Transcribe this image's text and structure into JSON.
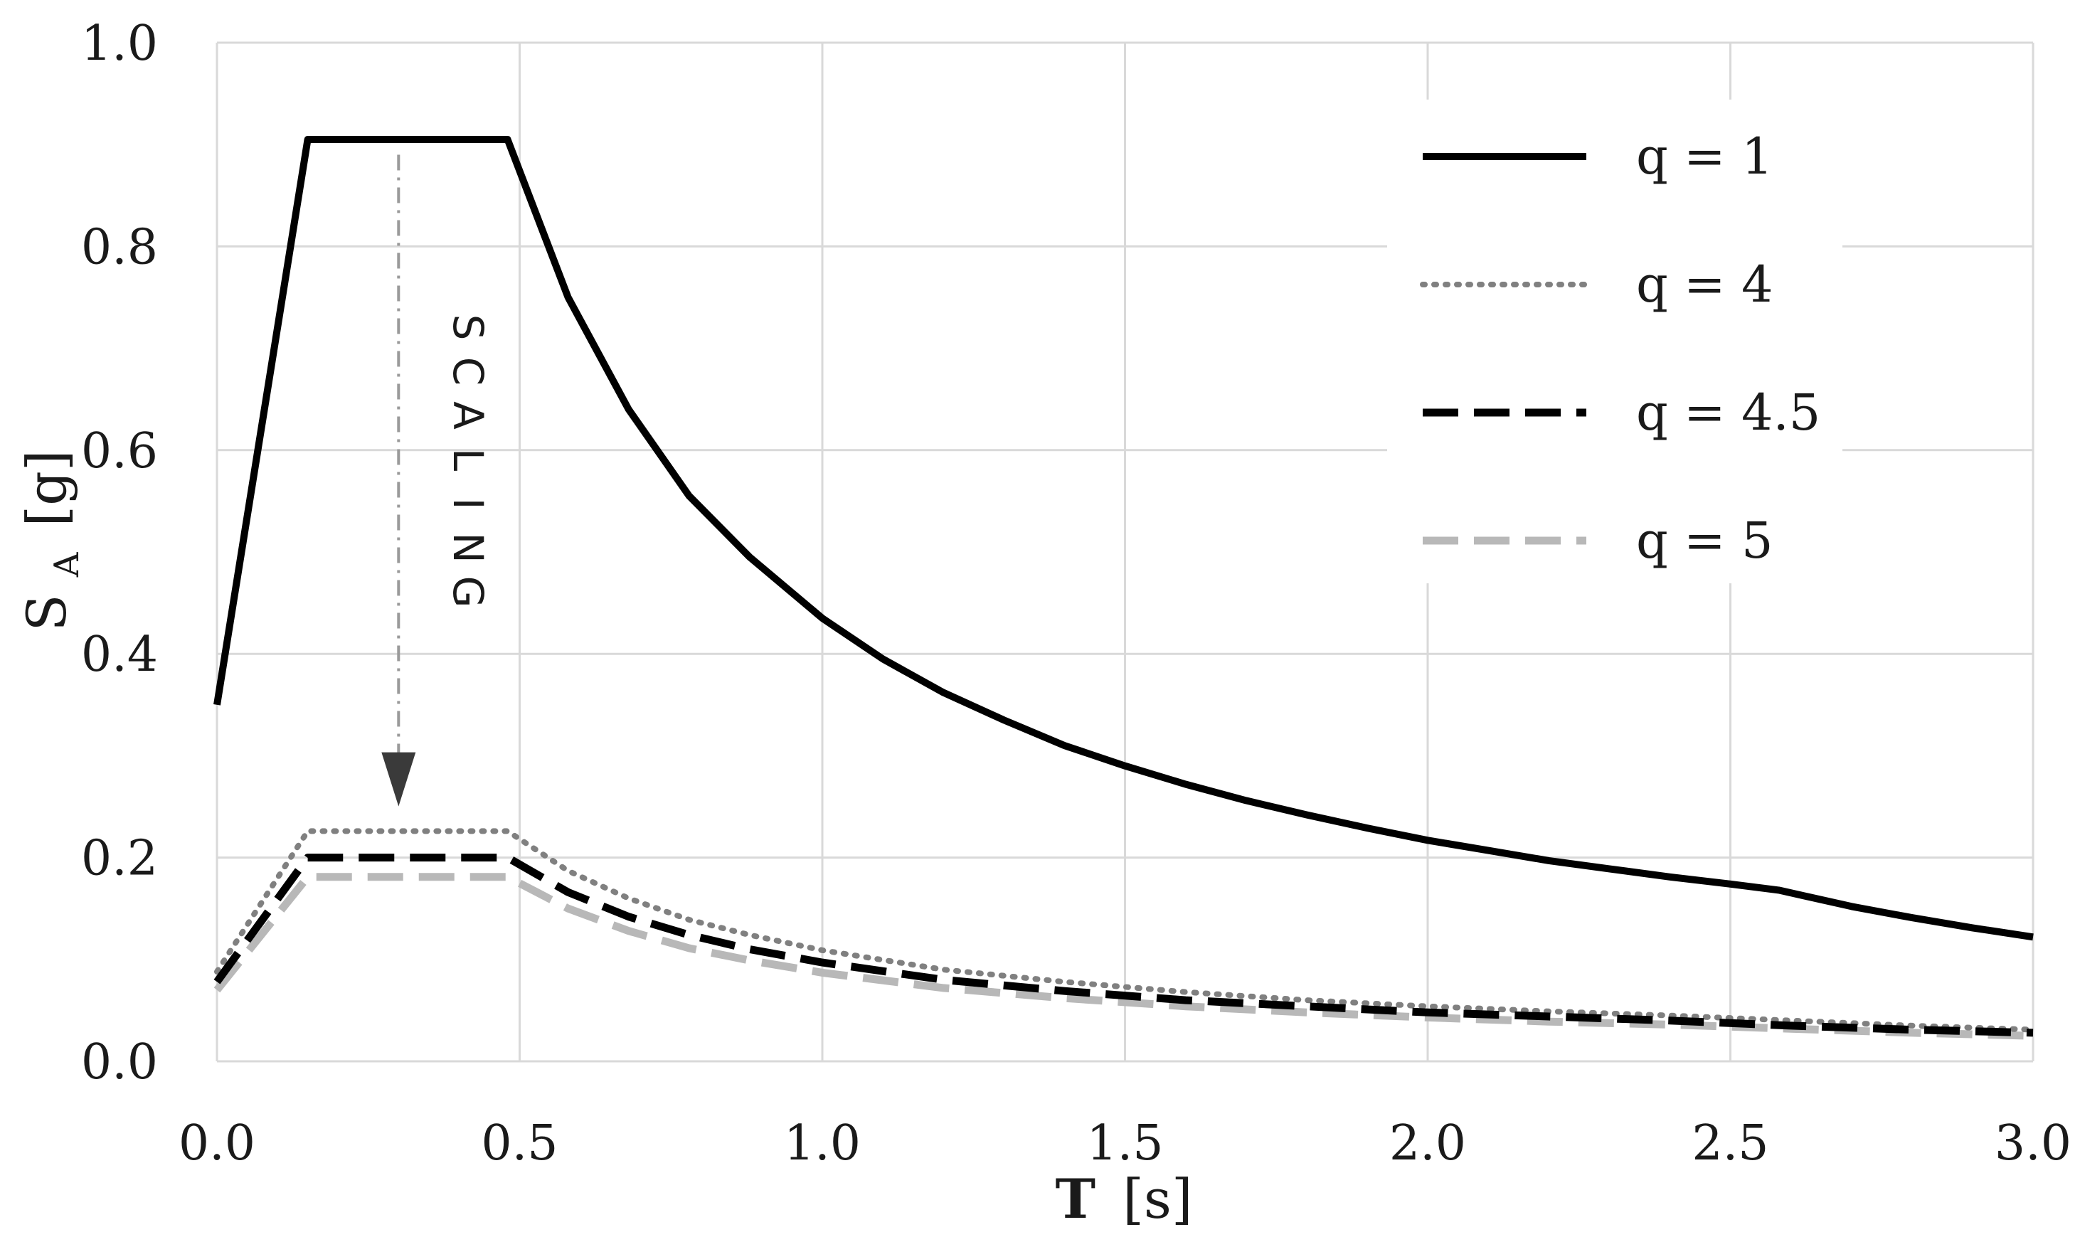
{
  "chart_data": {
    "type": "line",
    "xlabel_main": "T",
    "xlabel_unit": "[s]",
    "ylabel_main": "S",
    "ylabel_sub": "A",
    "ylabel_unit": "[g]",
    "xlim": [
      0.0,
      3.0
    ],
    "ylim": [
      0.0,
      1.0
    ],
    "xticks": [
      0.0,
      0.5,
      1.0,
      1.5,
      2.0,
      2.5,
      3.0
    ],
    "xtick_labels": [
      "0.0",
      "0.5",
      "1.0",
      "1.5",
      "2.0",
      "2.5",
      "3.0"
    ],
    "yticks": [
      0.0,
      0.2,
      0.4,
      0.6,
      0.8,
      1.0
    ],
    "ytick_labels": [
      "0.0",
      "0.2",
      "0.4",
      "0.6",
      "0.8",
      "1.0"
    ],
    "grid": true,
    "legend_position": "top-right",
    "annotation": {
      "text": "SCALING",
      "arrow_from": [
        0.3,
        0.89
      ],
      "arrow_to": [
        0.3,
        0.26
      ]
    },
    "series": [
      {
        "name": "q = 1",
        "style": "solid",
        "color": "#000000",
        "x": [
          0.0,
          0.15,
          0.48,
          0.58,
          0.68,
          0.78,
          0.88,
          1.0,
          1.1,
          1.2,
          1.3,
          1.4,
          1.5,
          1.6,
          1.7,
          1.8,
          1.9,
          2.0,
          2.1,
          2.2,
          2.3,
          2.4,
          2.5,
          2.58,
          2.7,
          2.8,
          2.9,
          3.0
        ],
        "y": [
          0.35,
          0.905,
          0.905,
          0.75,
          0.64,
          0.555,
          0.495,
          0.435,
          0.395,
          0.362,
          0.335,
          0.31,
          0.29,
          0.272,
          0.256,
          0.242,
          0.229,
          0.217,
          0.207,
          0.197,
          0.189,
          0.181,
          0.174,
          0.168,
          0.152,
          0.141,
          0.131,
          0.122
        ]
      },
      {
        "name": "q = 4",
        "style": "dotted",
        "color": "#808080",
        "x": [
          0.0,
          0.15,
          0.48,
          0.58,
          0.68,
          0.78,
          0.88,
          1.0,
          1.2,
          1.4,
          1.6,
          1.8,
          2.0,
          2.2,
          2.4,
          2.6,
          2.8,
          3.0
        ],
        "y": [
          0.088,
          0.226,
          0.226,
          0.187,
          0.16,
          0.139,
          0.124,
          0.109,
          0.09,
          0.078,
          0.068,
          0.06,
          0.054,
          0.049,
          0.045,
          0.04,
          0.035,
          0.031
        ]
      },
      {
        "name": "q = 4.5",
        "style": "dashed",
        "color": "#000000",
        "x": [
          0.0,
          0.15,
          0.48,
          0.58,
          0.68,
          0.78,
          0.88,
          1.0,
          1.2,
          1.4,
          1.6,
          1.8,
          2.0,
          2.2,
          2.4,
          2.6,
          2.8,
          3.0
        ],
        "y": [
          0.078,
          0.2,
          0.2,
          0.166,
          0.142,
          0.124,
          0.11,
          0.097,
          0.08,
          0.069,
          0.06,
          0.054,
          0.048,
          0.044,
          0.04,
          0.035,
          0.031,
          0.028
        ]
      },
      {
        "name": "q = 5",
        "style": "dashed",
        "color": "#b8b8b8",
        "x": [
          0.0,
          0.15,
          0.48,
          0.58,
          0.68,
          0.78,
          0.88,
          1.0,
          1.2,
          1.4,
          1.6,
          1.8,
          2.0,
          2.2,
          2.4,
          2.6,
          2.8,
          3.0
        ],
        "y": [
          0.07,
          0.181,
          0.181,
          0.15,
          0.128,
          0.111,
          0.099,
          0.087,
          0.072,
          0.062,
          0.054,
          0.048,
          0.043,
          0.039,
          0.036,
          0.032,
          0.028,
          0.025
        ]
      }
    ]
  }
}
